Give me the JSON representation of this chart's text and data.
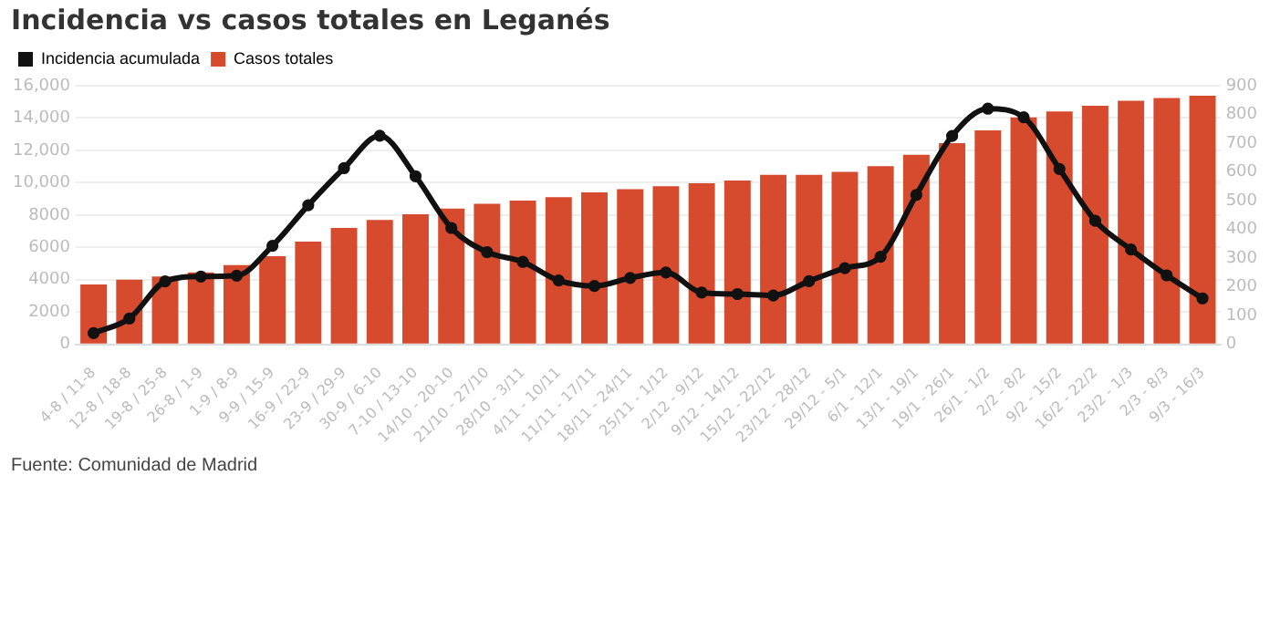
{
  "chart_data": {
    "type": "bar",
    "title": "Incidencia vs casos totales en Leganés",
    "categories": [
      "4-8 / 11-8",
      "12-8 / 18-8",
      "19-8 / 25-8",
      "26-8 / 1-9",
      "1-9 / 8-9",
      "9-9 / 15-9",
      "16-9 / 22-9",
      "23-9 / 29-9",
      "30-9 / 6-10",
      "7-10 / 13-10",
      "14/10 - 20-10",
      "21/10 - 27/10",
      "28/10 - 3/11",
      "4/11 - 10/11",
      "11/11 - 17/11",
      "18/11 - 24/11",
      "25/11 - 1/12",
      "2/12 - 9/12",
      "9/12 - 14/12",
      "15/12 - 22/12",
      "23/12 - 28/12",
      "29/12 - 5/1",
      "6/1 - 12/1",
      "13/1 - 19/1",
      "19/1 - 26/1",
      "26/1 - 1/2",
      "2/2 - 8/2",
      "9/2 - 15/2",
      "16/2 - 22/2",
      "23/2 - 1/3",
      "2/3 - 8/3",
      "9/3 - 16/3"
    ],
    "series": [
      {
        "name": "Incidencia acumulada",
        "type": "line",
        "axis": "y2",
        "color": "#111111",
        "values": [
          39,
          90,
          219,
          236,
          239,
          343,
          484,
          613,
          726,
          585,
          405,
          321,
          287,
          222,
          203,
          231,
          250,
          180,
          175,
          170,
          220,
          265,
          305,
          520,
          725,
          820,
          790,
          610,
          430,
          330,
          240,
          160
        ]
      },
      {
        "name": "Casos totales",
        "color": "#d64a2e",
        "values": [
          3700,
          4000,
          4200,
          4450,
          4900,
          5450,
          6350,
          7200,
          7700,
          8050,
          8400,
          8700,
          8900,
          9100,
          9400,
          9600,
          9780,
          9960,
          10130,
          10490,
          10490,
          10670,
          11020,
          11730,
          12440,
          13240,
          14040,
          14400,
          14760,
          15070,
          15240,
          15380
        ]
      }
    ],
    "ylim": [
      0,
      16000
    ],
    "yticks": [
      0,
      2000,
      4000,
      6000,
      8000,
      {
        "value": 10000,
        "label": "10,000"
      },
      {
        "value": 12000,
        "label": "12,000"
      },
      {
        "value": 14000,
        "label": "14,000"
      },
      {
        "value": 16000,
        "label": "16,000"
      }
    ],
    "y2lim": [
      0,
      900
    ],
    "y2ticks": [
      0,
      100,
      200,
      300,
      400,
      500,
      600,
      700,
      800,
      900
    ],
    "grid": "y",
    "legend": "top left",
    "marker": "circle",
    "line_style": "solid",
    "annotations": [
      "Fuente: Comunidad de Madrid"
    ]
  }
}
